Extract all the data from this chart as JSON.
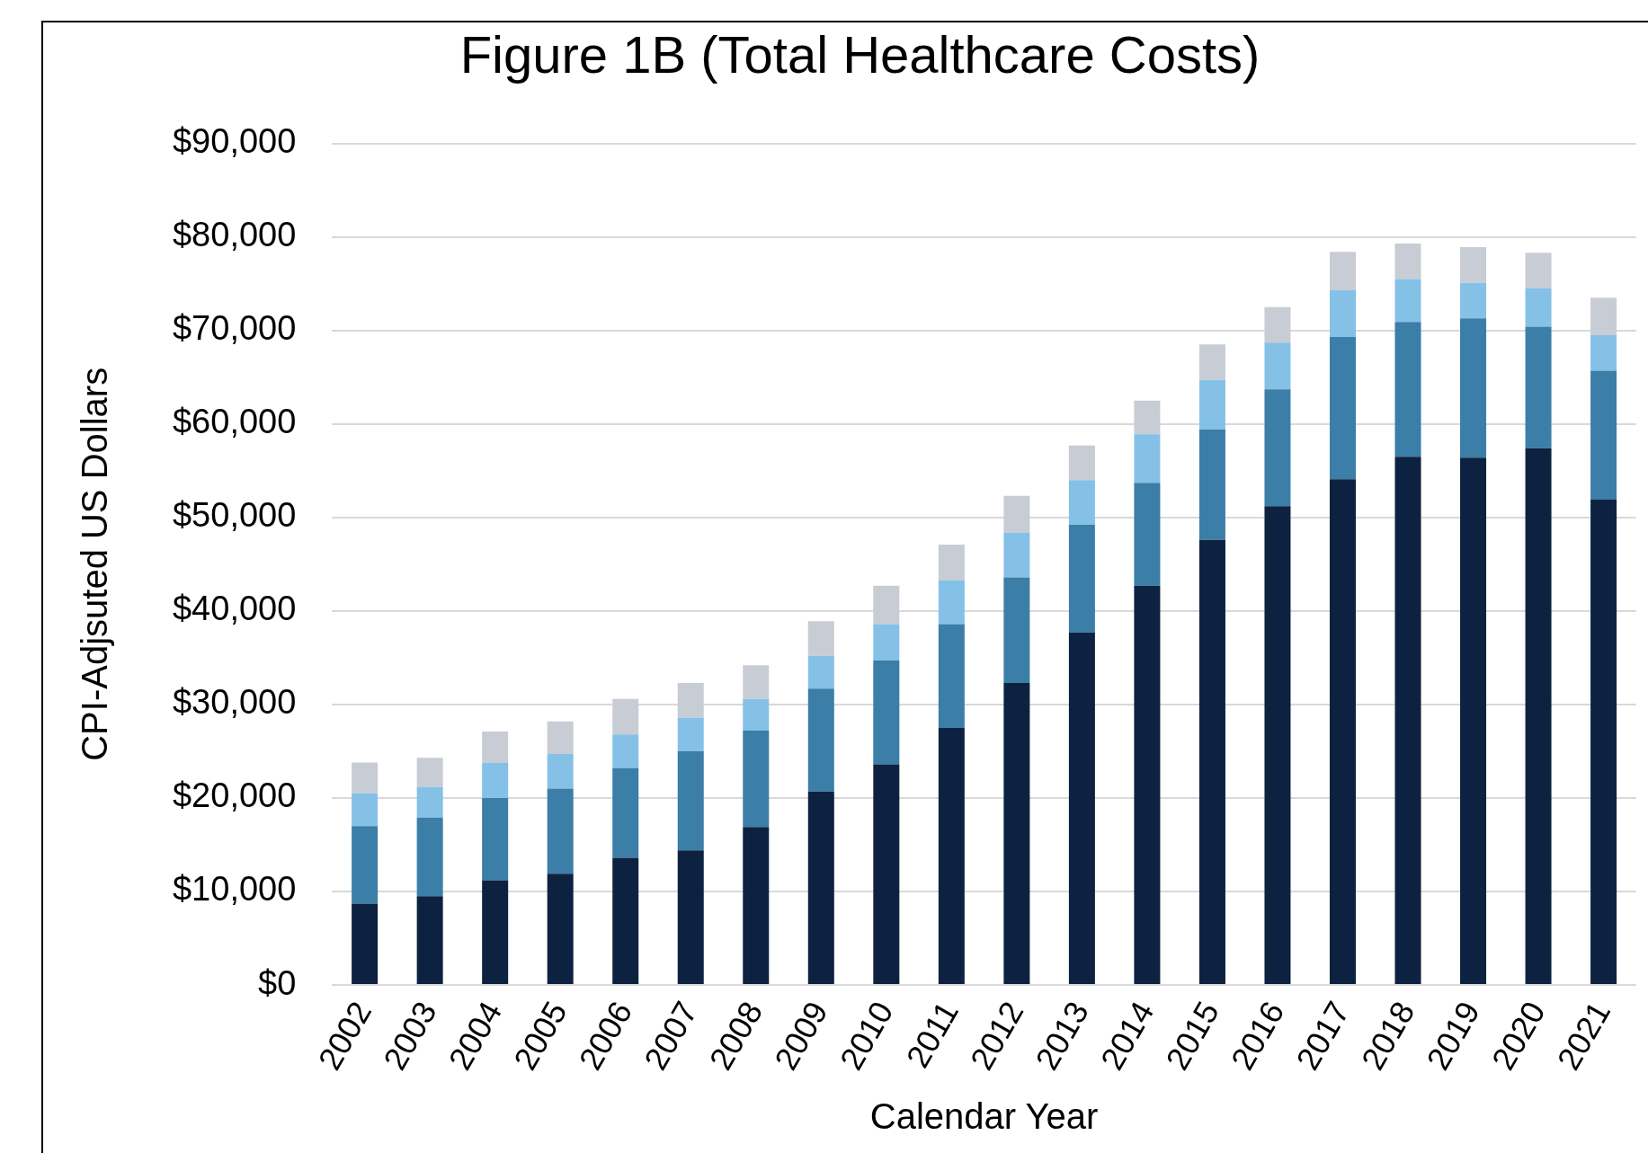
{
  "chart_data": {
    "type": "bar",
    "title": "Figure 1B (Total Healthcare Costs)",
    "xlabel": "Calendar Year",
    "ylabel": "CPI-Adjsuted US Dollars",
    "categories": [
      "2002",
      "2003",
      "2004",
      "2005",
      "2006",
      "2007",
      "2008",
      "2009",
      "2010",
      "2011",
      "2012",
      "2013",
      "2014",
      "2015",
      "2016",
      "2017",
      "2018",
      "2019",
      "2020",
      "2021"
    ],
    "stacked": true,
    "grid": "y",
    "legend": false,
    "ylim": [
      0,
      90000
    ],
    "yticks": [
      {
        "value": 0,
        "label": "$0"
      },
      {
        "value": 10000,
        "label": "$10,000"
      },
      {
        "value": 20000,
        "label": "$20,000"
      },
      {
        "value": 30000,
        "label": "$30,000"
      },
      {
        "value": 40000,
        "label": "$40,000"
      },
      {
        "value": 50000,
        "label": "$50,000"
      },
      {
        "value": 60000,
        "label": "$60,000"
      },
      {
        "value": 70000,
        "label": "$70,000"
      },
      {
        "value": 80000,
        "label": "$80,000"
      },
      {
        "value": 90000,
        "label": "$90,000"
      }
    ],
    "series": [
      {
        "color": "#0d2240",
        "values": [
          8700,
          9500,
          11200,
          11900,
          13600,
          14400,
          16900,
          20700,
          23600,
          27500,
          32300,
          37700,
          42700,
          47600,
          51200,
          54100,
          56500,
          56400,
          57400,
          51900
        ]
      },
      {
        "color": "#3b7ea8",
        "values": [
          8300,
          8400,
          8800,
          9100,
          9600,
          10600,
          10300,
          11000,
          11100,
          11100,
          11300,
          11500,
          11000,
          11800,
          12500,
          15200,
          14400,
          14900,
          13000,
          13800
        ]
      },
      {
        "color": "#85c1e6",
        "values": [
          3500,
          3300,
          3800,
          3700,
          3600,
          3600,
          3400,
          3500,
          3900,
          4700,
          4800,
          4800,
          5200,
          5300,
          5000,
          5000,
          4600,
          3800,
          4100,
          3800
        ]
      },
      {
        "color": "#c8ccd4",
        "values": [
          3300,
          3100,
          3300,
          3500,
          3800,
          3700,
          3600,
          3700,
          4100,
          3800,
          3900,
          3700,
          3600,
          3800,
          3800,
          4100,
          3800,
          3800,
          3800,
          4000
        ]
      }
    ]
  }
}
